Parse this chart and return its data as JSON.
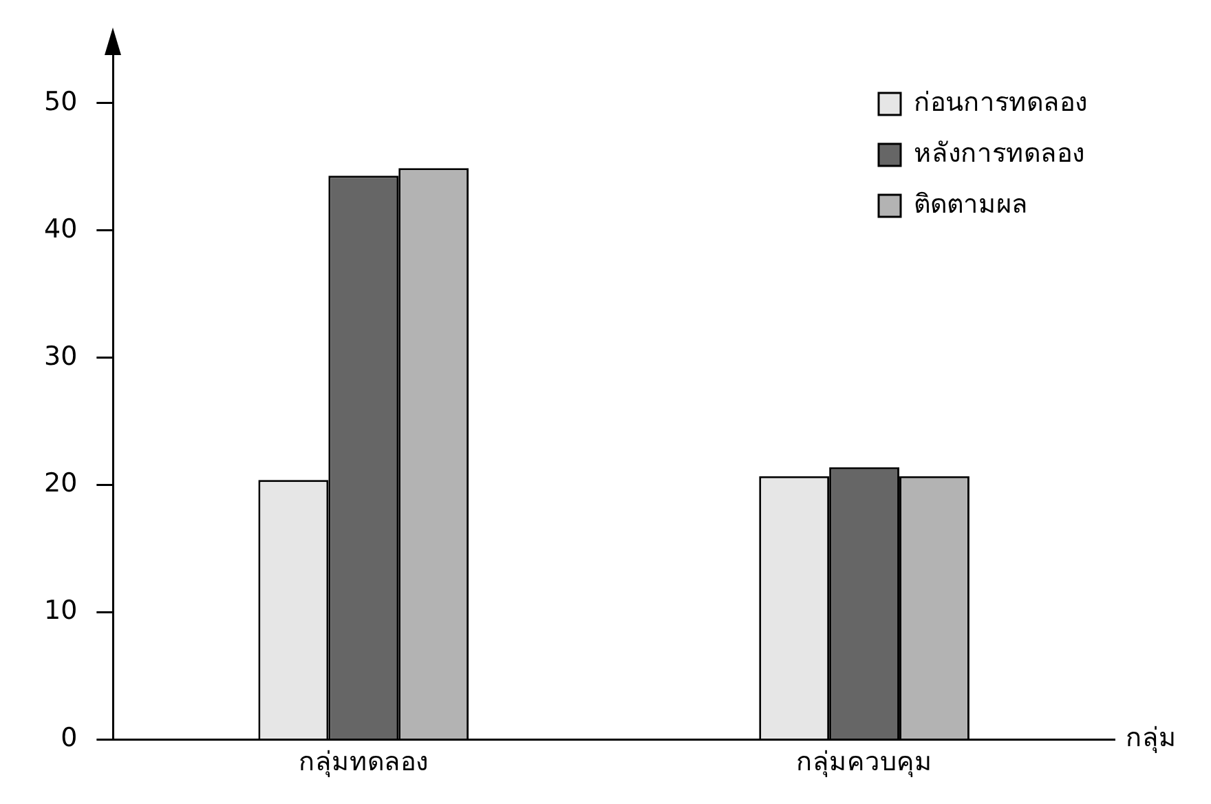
{
  "chart_data": {
    "type": "bar",
    "xlabel": "กลุ่ม",
    "categories": [
      "กลุ่มทดลอง",
      "กลุ่มควบคุม"
    ],
    "series": [
      {
        "name": "ก่อนการทดลอง",
        "color": "#e6e6e6",
        "values": [
          20.4,
          20.7
        ]
      },
      {
        "name": "หลังการทดลอง",
        "color": "#666666",
        "values": [
          44.3,
          21.4
        ]
      },
      {
        "name": "ติดตามผล",
        "color": "#b3b3b3",
        "values": [
          44.9,
          20.7
        ]
      }
    ],
    "ylim": [
      0,
      54
    ],
    "yticks": [
      0,
      10,
      20,
      30,
      40,
      50
    ],
    "grid": false,
    "legend": "top right"
  }
}
